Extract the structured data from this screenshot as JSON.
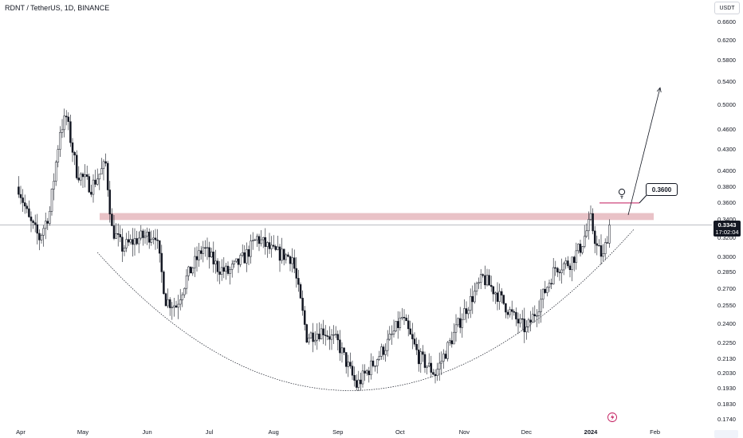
{
  "header": {
    "title": "RDNT / TetherUS, 1D, BINANCE"
  },
  "price_axis": {
    "currency": "USDT",
    "ticks": [
      "0.6600",
      "0.6200",
      "0.5800",
      "0.5400",
      "0.5000",
      "0.4600",
      "0.4300",
      "0.4000",
      "0.3800",
      "0.3600",
      "0.3400",
      "0.3200",
      "0.3000",
      "0.2850",
      "0.2700",
      "0.2550",
      "0.2400",
      "0.2250",
      "0.2130",
      "0.2030",
      "0.1930",
      "0.1830",
      "0.1740"
    ],
    "current_price": "0.3343",
    "countdown": "17:02:04"
  },
  "time_axis": {
    "labels": [
      "Apr",
      "May",
      "Jun",
      "Jul",
      "Aug",
      "Sep",
      "Oct",
      "Nov",
      "Dec",
      "2024",
      "Feb"
    ]
  },
  "annotations": {
    "target_label": "0.3600",
    "resistance_zone": {
      "from": 0.34,
      "to": 0.348,
      "color": "#e9c2c7"
    }
  },
  "colors": {
    "candle": "#131722",
    "background": "#ffffff",
    "zone": "#e9c2c7",
    "accent": "#c2185b"
  },
  "icons": [
    "lightbulb-icon",
    "lightning-icon"
  ],
  "chart_data": {
    "type": "candlestick",
    "title": "RDNT / TetherUS, 1D, BINANCE",
    "scale": "log",
    "ylim": [
      0.17,
      0.68
    ],
    "x_range": [
      "2023-03-31",
      "2024-02-05"
    ],
    "y_ticks": [
      0.66,
      0.62,
      0.58,
      0.54,
      0.5,
      0.46,
      0.43,
      0.4,
      0.38,
      0.36,
      0.34,
      0.32,
      0.3,
      0.285,
      0.27,
      0.255,
      0.24,
      0.225,
      0.213,
      0.203,
      0.193,
      0.183,
      0.174
    ],
    "close_path": [
      [
        "2023-03-31",
        0.38
      ],
      [
        "2023-04-05",
        0.34
      ],
      [
        "2023-04-10",
        0.32
      ],
      [
        "2023-04-15",
        0.35
      ],
      [
        "2023-04-20",
        0.46
      ],
      [
        "2023-04-23",
        0.48
      ],
      [
        "2023-04-28",
        0.4
      ],
      [
        "2023-05-05",
        0.38
      ],
      [
        "2023-05-12",
        0.41
      ],
      [
        "2023-05-15",
        0.33
      ],
      [
        "2023-05-20",
        0.31
      ],
      [
        "2023-05-28",
        0.32
      ],
      [
        "2023-06-05",
        0.325
      ],
      [
        "2023-06-10",
        0.26
      ],
      [
        "2023-06-15",
        0.255
      ],
      [
        "2023-06-20",
        0.28
      ],
      [
        "2023-06-28",
        0.31
      ],
      [
        "2023-07-05",
        0.29
      ],
      [
        "2023-07-10",
        0.285
      ],
      [
        "2023-07-18",
        0.3
      ],
      [
        "2023-07-24",
        0.32
      ],
      [
        "2023-08-01",
        0.305
      ],
      [
        "2023-08-10",
        0.3
      ],
      [
        "2023-08-17",
        0.23
      ],
      [
        "2023-08-25",
        0.235
      ],
      [
        "2023-09-01",
        0.225
      ],
      [
        "2023-09-10",
        0.195
      ],
      [
        "2023-09-18",
        0.21
      ],
      [
        "2023-09-25",
        0.225
      ],
      [
        "2023-10-02",
        0.245
      ],
      [
        "2023-10-10",
        0.215
      ],
      [
        "2023-10-18",
        0.203
      ],
      [
        "2023-10-25",
        0.225
      ],
      [
        "2023-11-01",
        0.25
      ],
      [
        "2023-11-10",
        0.28
      ],
      [
        "2023-11-17",
        0.265
      ],
      [
        "2023-11-25",
        0.245
      ],
      [
        "2023-12-01",
        0.235
      ],
      [
        "2023-12-08",
        0.26
      ],
      [
        "2023-12-15",
        0.29
      ],
      [
        "2023-12-22",
        0.295
      ],
      [
        "2023-12-27",
        0.31
      ],
      [
        "2024-01-01",
        0.34
      ],
      [
        "2024-01-04",
        0.31
      ],
      [
        "2024-01-07",
        0.3
      ],
      [
        "2024-01-10",
        0.3343
      ]
    ],
    "resistance_zone": [
      0.34,
      0.348
    ],
    "marked_price": 0.36,
    "arrow_target": 0.53,
    "curve_points": [
      [
        "2023-05-08",
        0.305
      ],
      [
        "2023-09-12",
        0.192
      ],
      [
        "2024-01-22",
        0.33
      ]
    ]
  }
}
